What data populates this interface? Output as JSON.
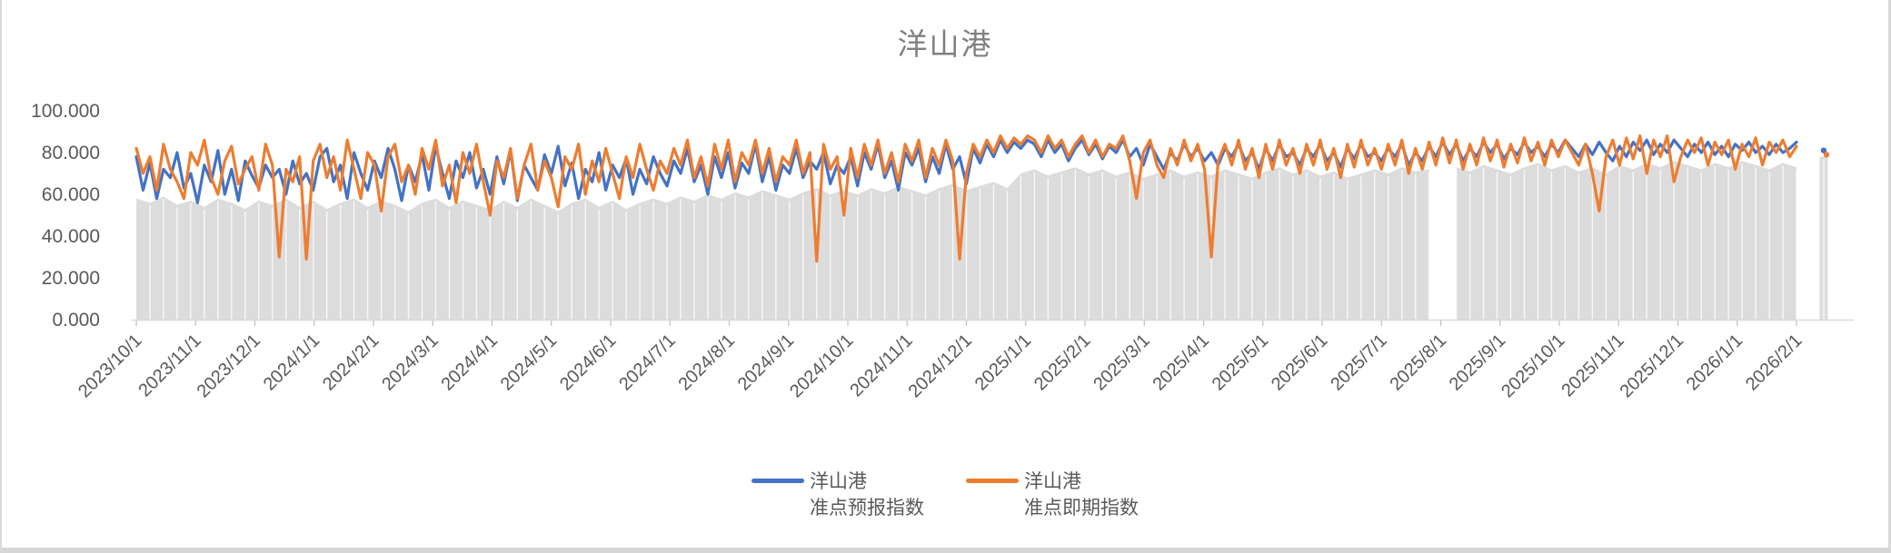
{
  "chart": {
    "title": "洋山港",
    "y_axis": {
      "labels": [
        "100.000",
        "80.000",
        "60.000",
        "40.000",
        "20.000",
        "0.000"
      ]
    },
    "x_axis": {
      "labels": [
        "2023/10/1",
        "2023/11/1",
        "2023/12/1",
        "2024/1/1",
        "2024/2/1",
        "2024/3/1",
        "2024/4/1",
        "2024/5/1",
        "2024/6/1",
        "2024/7/1",
        "2024/8/1",
        "2024/9/1",
        "2024/10/1",
        "2024/11/1",
        "2024/12/1",
        "2025/1/1",
        "2025/2/1",
        "2025/3/1",
        "2025/4/1",
        "2025/5/1",
        "2025/6/1",
        "2025/7/1",
        "2025/8/1",
        "2025/9/1",
        "2025/10/1",
        "2025/11/1",
        "2025/12/1",
        "2026/1/1",
        "2026/2/1"
      ]
    },
    "legend": [
      {
        "line1": "洋山港",
        "line2": "准点预报指数",
        "color": "#4472C4"
      },
      {
        "line1": "洋山港",
        "line2": "准点即期指数",
        "color": "#ED7D31"
      }
    ],
    "colors": {
      "forecast_line": "#4472C4",
      "spot_line": "#ED7D31",
      "band_fill": "#DCDCDC",
      "band_stripe": "#FFFFFF",
      "axis_text": "#595959",
      "title_text": "#808080",
      "axis_line": "#D9D9D9",
      "tick_mark": "#BFBFBF"
    }
  },
  "chart_data": {
    "type": "line",
    "title": "洋山港",
    "xlabel": "",
    "ylabel": "",
    "ylim": [
      0,
      100
    ],
    "y_tick_values": [
      0,
      20,
      40,
      60,
      80,
      100
    ],
    "x_start": "2023/10/1",
    "x_end": "2026/2/1",
    "x_tick_labels": [
      "2023/10/1",
      "2023/11/1",
      "2023/12/1",
      "2024/1/1",
      "2024/2/1",
      "2024/3/1",
      "2024/4/1",
      "2024/5/1",
      "2024/6/1",
      "2024/7/1",
      "2024/8/1",
      "2024/9/1",
      "2024/10/1",
      "2024/11/1",
      "2024/12/1",
      "2025/1/1",
      "2025/2/1",
      "2025/3/1",
      "2025/4/1",
      "2025/5/1",
      "2025/6/1",
      "2025/7/1",
      "2025/8/1",
      "2025/9/1",
      "2025/10/1",
      "2025/11/1",
      "2025/12/1",
      "2026/1/1",
      "2026/2/1"
    ],
    "x_step_days": 3.5,
    "legend_position": "bottom",
    "grid": false,
    "series": [
      {
        "name": "洋山港准点预报指数",
        "color": "#4472C4",
        "values": [
          78,
          62,
          75,
          58,
          72,
          68,
          80,
          63,
          70,
          56,
          74,
          66,
          81,
          60,
          72,
          57,
          76,
          69,
          63,
          74,
          68,
          72,
          60,
          76,
          65,
          70,
          62,
          78,
          82,
          66,
          74,
          58,
          80,
          70,
          62,
          76,
          68,
          82,
          72,
          57,
          74,
          66,
          79,
          62,
          83,
          70,
          58,
          76,
          68,
          80,
          63,
          72,
          60,
          78,
          65,
          81,
          57,
          74,
          68,
          62,
          79,
          70,
          83,
          64,
          75,
          58,
          72,
          66,
          80,
          62,
          74,
          68,
          77,
          60,
          72,
          65,
          78,
          70,
          64,
          76,
          70,
          82,
          66,
          74,
          60,
          78,
          68,
          80,
          63,
          75,
          70,
          84,
          66,
          78,
          62,
          74,
          70,
          82,
          68,
          76,
          72,
          80,
          65,
          74,
          70,
          78,
          64,
          80,
          72,
          84,
          68,
          76,
          62,
          80,
          74,
          82,
          66,
          78,
          70,
          84,
          72,
          78,
          65,
          82,
          75,
          84,
          78,
          86,
          80,
          85,
          82,
          86,
          84,
          78,
          86,
          80,
          84,
          76,
          82,
          86,
          79,
          84,
          77,
          83,
          80,
          86,
          78,
          82,
          74,
          84,
          78,
          72,
          80,
          76,
          84,
          78,
          82,
          76,
          80,
          74,
          82,
          78,
          84,
          76,
          80,
          72,
          82,
          76,
          84,
          78,
          80,
          74,
          82,
          78,
          84,
          76,
          80,
          73,
          82,
          77,
          84,
          78,
          80,
          76,
          82,
          78,
          84,
          74,
          80,
          76,
          83,
          78,
          85,
          79,
          84,
          76,
          82,
          78,
          85,
          80,
          84,
          77,
          82,
          79,
          85,
          80,
          83,
          78,
          84,
          80,
          86,
          82,
          78,
          84,
          79,
          85,
          80,
          76,
          83,
          78,
          85,
          81,
          86,
          79,
          84,
          80,
          86,
          82,
          78,
          84,
          80,
          85,
          79,
          83,
          78,
          84,
          81,
          85,
          80,
          83,
          79,
          84,
          80,
          82,
          85,
          null,
          null,
          null,
          81
        ]
      },
      {
        "name": "洋山港准点即期指数",
        "color": "#ED7D31",
        "values": [
          82,
          70,
          78,
          62,
          84,
          72,
          66,
          58,
          80,
          74,
          86,
          68,
          60,
          76,
          83,
          65,
          72,
          78,
          62,
          84,
          74,
          30,
          72,
          66,
          78,
          29,
          76,
          84,
          68,
          78,
          62,
          86,
          72,
          58,
          80,
          74,
          52,
          78,
          84,
          66,
          74,
          60,
          82,
          72,
          86,
          64,
          74,
          56,
          80,
          70,
          84,
          66,
          50,
          76,
          68,
          82,
          58,
          74,
          84,
          62,
          76,
          68,
          54,
          78,
          72,
          84,
          60,
          76,
          66,
          82,
          70,
          58,
          78,
          68,
          84,
          72,
          62,
          76,
          70,
          82,
          74,
          86,
          68,
          78,
          64,
          84,
          72,
          86,
          66,
          80,
          74,
          86,
          70,
          82,
          66,
          78,
          74,
          86,
          70,
          80,
          28,
          84,
          72,
          78,
          50,
          82,
          68,
          84,
          74,
          86,
          70,
          80,
          66,
          84,
          76,
          86,
          68,
          82,
          74,
          86,
          76,
          29,
          70,
          84,
          78,
          86,
          80,
          88,
          82,
          87,
          84,
          88,
          86,
          80,
          88,
          82,
          86,
          78,
          84,
          88,
          80,
          86,
          78,
          84,
          82,
          88,
          76,
          58,
          80,
          86,
          74,
          68,
          82,
          74,
          86,
          76,
          84,
          72,
          30,
          76,
          84,
          74,
          86,
          72,
          82,
          68,
          84,
          72,
          86,
          74,
          82,
          70,
          84,
          74,
          86,
          72,
          82,
          68,
          84,
          73,
          86,
          74,
          82,
          72,
          84,
          74,
          86,
          70,
          82,
          72,
          85,
          74,
          87,
          75,
          86,
          72,
          84,
          74,
          87,
          76,
          86,
          73,
          84,
          75,
          87,
          76,
          85,
          74,
          86,
          78,
          86,
          80,
          74,
          84,
          70,
          52,
          78,
          86,
          74,
          87,
          77,
          88,
          70,
          86,
          78,
          88,
          66,
          78,
          86,
          80,
          87,
          74,
          85,
          79,
          86,
          72,
          84,
          78,
          87,
          74,
          85,
          80,
          86,
          78,
          83,
          null,
          null,
          null,
          79
        ]
      }
    ],
    "background_band": {
      "description": "gray shaded area under the lines with weekly white stripes",
      "step_days": 7,
      "values": [
        58,
        56,
        59,
        55,
        57,
        54,
        58,
        56,
        53,
        57,
        55,
        58,
        54,
        57,
        53,
        56,
        58,
        54,
        57,
        55,
        52,
        56,
        58,
        54,
        57,
        55,
        53,
        57,
        54,
        58,
        55,
        52,
        56,
        58,
        54,
        57,
        53,
        56,
        58,
        56,
        59,
        57,
        60,
        58,
        61,
        59,
        62,
        60,
        58,
        61,
        63,
        60,
        62,
        60,
        63,
        61,
        64,
        62,
        60,
        63,
        65,
        62,
        64,
        66,
        63,
        70,
        72,
        69,
        71,
        73,
        70,
        72,
        69,
        71,
        68,
        70,
        72,
        69,
        71,
        69,
        72,
        70,
        68,
        71,
        73,
        70,
        72,
        69,
        71,
        68,
        70,
        72,
        70,
        73,
        71,
        72,
        null,
        73,
        71,
        74,
        72,
        70,
        73,
        75,
        72,
        74,
        71,
        73,
        70,
        74,
        72,
        75,
        73,
        76,
        74,
        72,
        75,
        73,
        76,
        74,
        72,
        75,
        73,
        null,
        78
      ]
    }
  }
}
